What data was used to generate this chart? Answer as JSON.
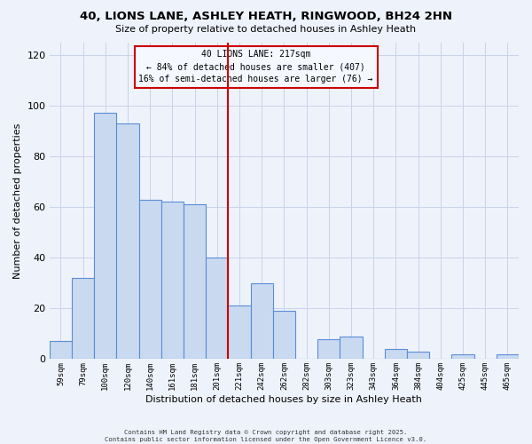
{
  "title": "40, LIONS LANE, ASHLEY HEATH, RINGWOOD, BH24 2HN",
  "subtitle": "Size of property relative to detached houses in Ashley Heath",
  "xlabel": "Distribution of detached houses by size in Ashley Heath",
  "ylabel": "Number of detached properties",
  "categories": [
    "59sqm",
    "79sqm",
    "100sqm",
    "120sqm",
    "140sqm",
    "161sqm",
    "181sqm",
    "201sqm",
    "221sqm",
    "242sqm",
    "262sqm",
    "282sqm",
    "303sqm",
    "323sqm",
    "343sqm",
    "364sqm",
    "384sqm",
    "404sqm",
    "425sqm",
    "445sqm",
    "465sqm"
  ],
  "values": [
    7,
    32,
    97,
    93,
    63,
    62,
    61,
    40,
    21,
    30,
    19,
    0,
    8,
    9,
    0,
    4,
    3,
    0,
    2,
    0,
    2
  ],
  "bar_color": "#c9d9f0",
  "bar_edge_color": "#5b8ed6",
  "vline_color": "#cc0000",
  "vline_x_index": 8,
  "annotation_line1": "40 LIONS LANE: 217sqm",
  "annotation_line2": "← 84% of detached houses are smaller (407)",
  "annotation_line3": "16% of semi-detached houses are larger (76) →",
  "annotation_box_facecolor": "#f5f8ff",
  "annotation_box_edgecolor": "#cc0000",
  "ylim": [
    0,
    125
  ],
  "yticks": [
    0,
    20,
    40,
    60,
    80,
    100,
    120
  ],
  "footer1": "Contains HM Land Registry data © Crown copyright and database right 2025.",
  "footer2": "Contains public sector information licensed under the Open Government Licence v3.0.",
  "bg_color": "#eef2fb",
  "grid_color": "#c8d3ea"
}
